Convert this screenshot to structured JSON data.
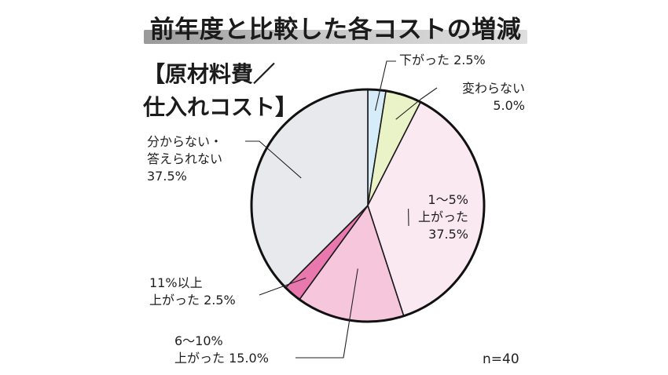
{
  "chart_data": {
    "type": "pie",
    "title": "前年度と比較した各コストの増減",
    "subtitle": [
      "【原材料費／",
      "仕入れコスト】"
    ],
    "note": "n=40",
    "slices": [
      {
        "label_lines": [
          "下がった",
          "2.5%"
        ],
        "label": "下がった 2.5%",
        "value": 2.5,
        "color": "#d6ecf8"
      },
      {
        "label_lines": [
          "変わらない",
          "5.0%"
        ],
        "label": "変わらない 5.0%",
        "value": 5.0,
        "color": "#eaf2c8"
      },
      {
        "label_lines": [
          "1〜5%",
          "上がった",
          "37.5%"
        ],
        "label": "1〜5% 上がった 37.5%",
        "value": 37.5,
        "color": "#fbe9f2"
      },
      {
        "label_lines": [
          "6〜10%",
          "上がった 15.0%"
        ],
        "label": "6〜10% 上がった 15.0%",
        "value": 15.0,
        "color": "#f6c7dc"
      },
      {
        "label_lines": [
          "11%以上",
          "上がった 2.5%"
        ],
        "label": "11%以上 上がった 2.5%",
        "value": 2.5,
        "color": "#e878ad"
      },
      {
        "label_lines": [
          "分からない・",
          "答えられない",
          "37.5%"
        ],
        "label": "分からない・答えられない 37.5%",
        "value": 37.5,
        "color": "#e8e9ec"
      }
    ],
    "start_angle_deg": 0,
    "direction": "clockwise"
  }
}
